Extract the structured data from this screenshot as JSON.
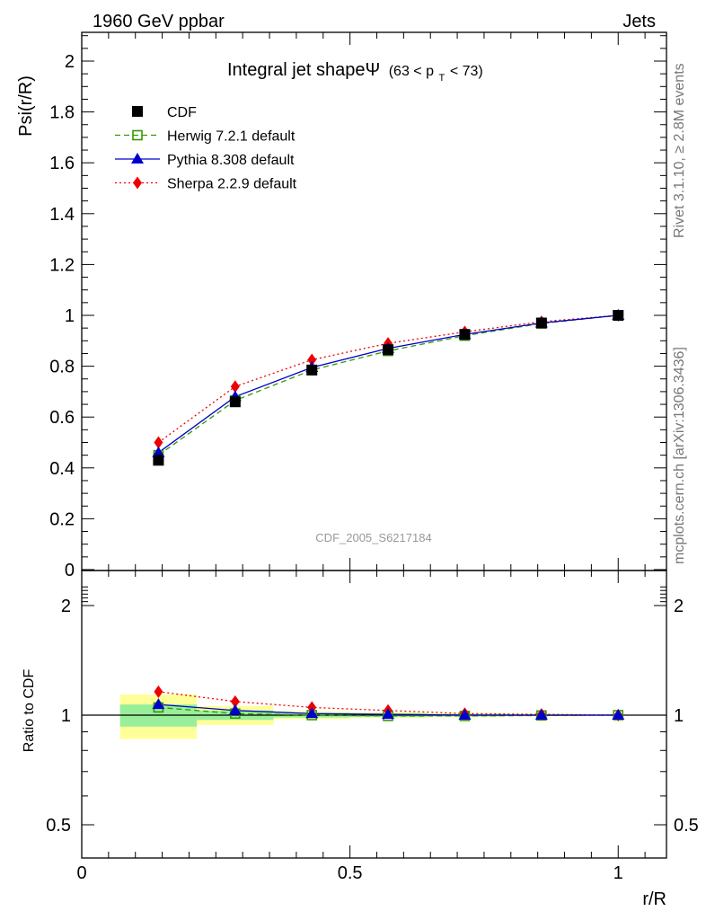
{
  "header": {
    "left": "1960 GeV ppbar",
    "right": "Jets"
  },
  "side_labels": {
    "rivet": "Rivet 3.1.10, ≥ 2.8M events",
    "mcplots": "mcplots.cern.ch [arXiv:1306.3436]"
  },
  "watermark": "CDF_2005_S6217184",
  "chart_data": [
    {
      "type": "line",
      "title_main": "Integral jet shapeΨ",
      "title_range_pre": "(63 < p",
      "title_sub": "T",
      "title_range_post": " < 73)",
      "xlabel": "r/R",
      "ylabel": "Psi(r/R)",
      "xlim": [
        0,
        1.09
      ],
      "ylim": [
        0,
        2.12
      ],
      "yticks": [
        "0",
        "0.2",
        "0.4",
        "0.6",
        "0.8",
        "1",
        "1.2",
        "1.4",
        "1.6",
        "1.8",
        "2"
      ],
      "ytick_values": [
        0,
        0.2,
        0.4,
        0.6,
        0.8,
        1.0,
        1.2,
        1.4,
        1.6,
        1.8,
        2.0
      ],
      "legend_position": "top-left",
      "x": [
        0.143,
        0.286,
        0.429,
        0.571,
        0.714,
        0.857,
        1.0
      ],
      "series": [
        {
          "name": "CDF",
          "color": "#000000",
          "marker": "filled-square",
          "line": "none",
          "values": [
            0.43,
            0.66,
            0.785,
            0.865,
            0.925,
            0.97,
            1.0
          ]
        },
        {
          "name": "Herwig 7.2.1 default",
          "color": "#339900",
          "marker": "open-square",
          "line": "dashed",
          "values": [
            0.45,
            0.665,
            0.785,
            0.86,
            0.92,
            0.968,
            1.0
          ]
        },
        {
          "name": "Pythia 8.308 default",
          "color": "#0000cc",
          "marker": "triangle",
          "line": "solid",
          "values": [
            0.46,
            0.68,
            0.795,
            0.87,
            0.925,
            0.97,
            1.0
          ]
        },
        {
          "name": "Sherpa 2.2.9 default",
          "color": "#ee0000",
          "marker": "diamond",
          "line": "dotted",
          "values": [
            0.5,
            0.72,
            0.825,
            0.89,
            0.935,
            0.975,
            1.0
          ]
        }
      ]
    },
    {
      "type": "line",
      "ylabel": "Ratio to CDF",
      "xlabel": "r/R",
      "xlim": [
        0,
        1.09
      ],
      "ylim": [
        0.35,
        2.3
      ],
      "yticks": [
        "0.5",
        "1",
        "2"
      ],
      "ytick_values": [
        0.5,
        1,
        2
      ],
      "xticks": [
        "0",
        "0.5",
        "1"
      ],
      "xtick_values": [
        0,
        0.5,
        1
      ],
      "x": [
        0.143,
        0.286,
        0.429,
        0.571,
        0.714,
        0.857,
        1.0
      ],
      "bin_edges": [
        0.0715,
        0.2145,
        0.3575,
        0.5,
        0.643,
        0.786,
        0.929,
        1.0
      ],
      "uncertainty_green": [
        0.07,
        0.03,
        0.015,
        0.012,
        0.008,
        0.005,
        0.0
      ],
      "uncertainty_yellow": [
        0.14,
        0.06,
        0.025,
        0.018,
        0.012,
        0.008,
        0.0
      ],
      "series": [
        {
          "name": "Herwig 7.2.1 default",
          "values": [
            1.05,
            1.01,
            1.0,
            0.995,
            0.995,
            0.998,
            1.0
          ]
        },
        {
          "name": "Pythia 8.308 default",
          "values": [
            1.07,
            1.03,
            1.01,
            1.005,
            1.0,
            1.0,
            1.0
          ]
        },
        {
          "name": "Sherpa 2.2.9 default",
          "values": [
            1.16,
            1.09,
            1.05,
            1.03,
            1.01,
            1.005,
            1.0
          ]
        }
      ]
    }
  ]
}
